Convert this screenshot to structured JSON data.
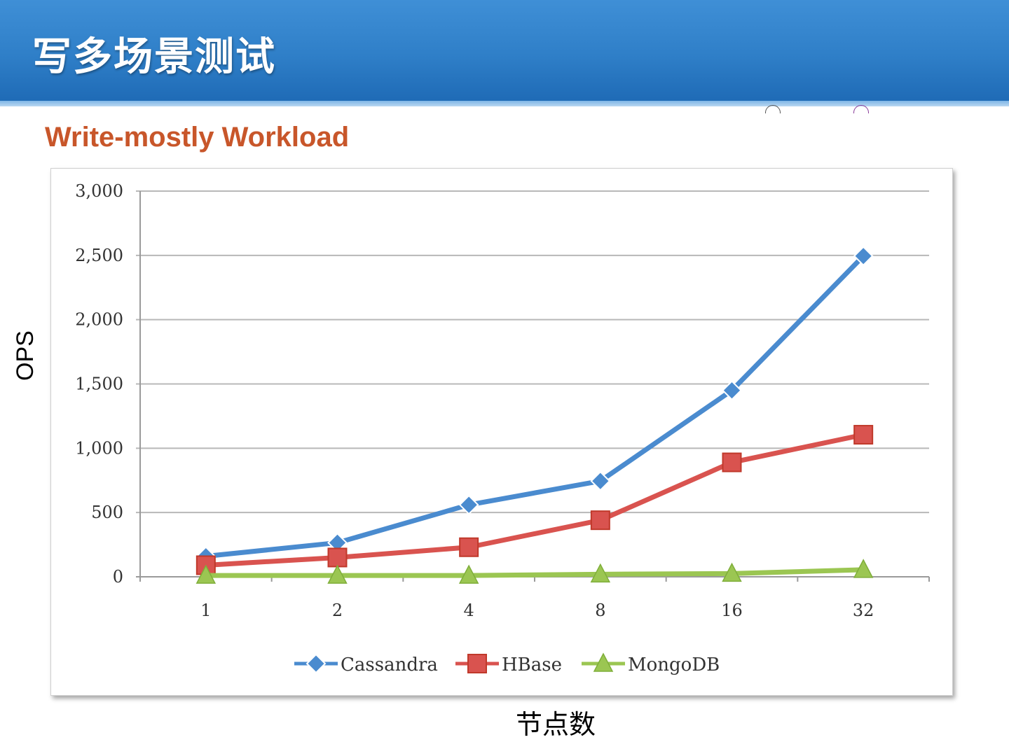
{
  "slide": {
    "title": "写多场景测试"
  },
  "chart_data": {
    "type": "line",
    "title": "Write-mostly Workload",
    "xlabel": "节点数",
    "ylabel": "OPS",
    "categories": [
      "1",
      "2",
      "4",
      "8",
      "16",
      "32"
    ],
    "ylim": [
      0,
      3000
    ],
    "yticks": [
      "0",
      "500",
      "1,000",
      "1,500",
      "2,000",
      "2,500",
      "3,000"
    ],
    "ytick_values": [
      0,
      500,
      1000,
      1500,
      2000,
      2500,
      3000
    ],
    "grid": true,
    "legend_position": "bottom",
    "series": [
      {
        "name": "Cassandra",
        "values": [
          160,
          265,
          560,
          745,
          1450,
          2495
        ],
        "color": "#4a8bcf",
        "marker": "diamond"
      },
      {
        "name": "HBase",
        "values": [
          90,
          150,
          230,
          440,
          890,
          1105
        ],
        "color": "#d9534f",
        "marker": "square"
      },
      {
        "name": "MongoDB",
        "values": [
          10,
          10,
          10,
          20,
          25,
          55
        ],
        "color": "#9bc652",
        "marker": "triangle"
      }
    ]
  }
}
